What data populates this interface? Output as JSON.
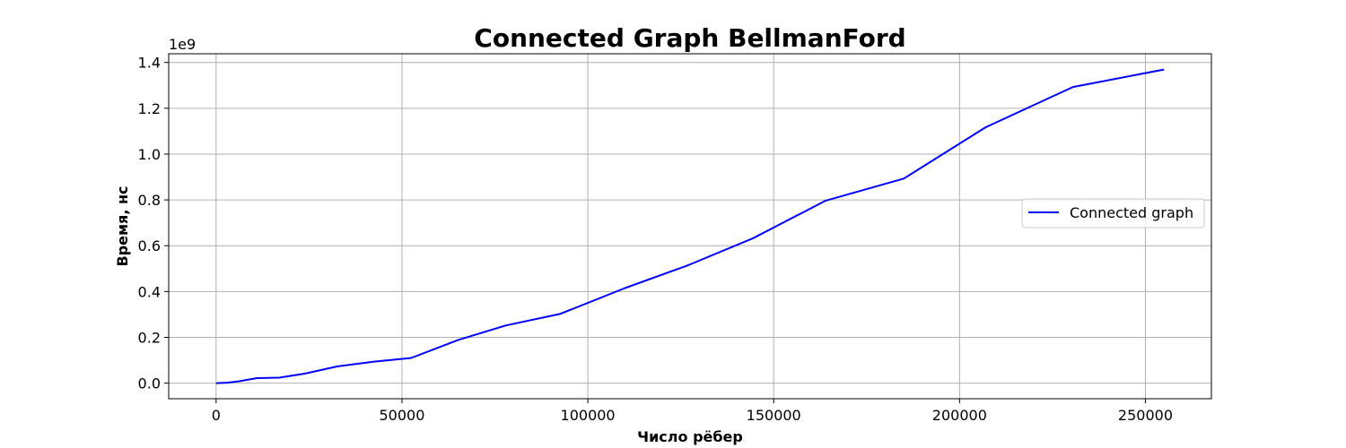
{
  "chart_data": {
    "type": "line",
    "title": "Connected Graph BellmanFord",
    "xlabel": "Число рёбер",
    "ylabel": "Время, нс",
    "y_offset_label": "1e9",
    "xlim": [
      -12750,
      267750
    ],
    "ylim": [
      -0.068,
      1.438
    ],
    "xticks": [
      0,
      50000,
      100000,
      150000,
      200000,
      250000
    ],
    "xtick_labels": [
      "0",
      "50000",
      "100000",
      "150000",
      "200000",
      "250000"
    ],
    "yticks": [
      0.0,
      0.2,
      0.4,
      0.6,
      0.8,
      1.0,
      1.2,
      1.4
    ],
    "ytick_labels": [
      "0.0",
      "0.2",
      "0.4",
      "0.6",
      "0.8",
      "1.0",
      "1.2",
      "1.4"
    ],
    "grid": true,
    "legend_position": "center-right",
    "series": [
      {
        "name": "Connected graph",
        "color": "#0000ff",
        "x": [
          0,
          3000,
          6000,
          11000,
          17000,
          24000,
          32500,
          42500,
          52500,
          65000,
          78000,
          92500,
          110000,
          127000,
          144500,
          164000,
          185000,
          207000,
          230500,
          255000
        ],
        "y": [
          0.0,
          0.002,
          0.008,
          0.022,
          0.024,
          0.042,
          0.073,
          0.094,
          0.11,
          0.188,
          0.252,
          0.302,
          0.415,
          0.515,
          0.633,
          0.797,
          0.893,
          1.117,
          1.293,
          1.369
        ]
      }
    ]
  }
}
